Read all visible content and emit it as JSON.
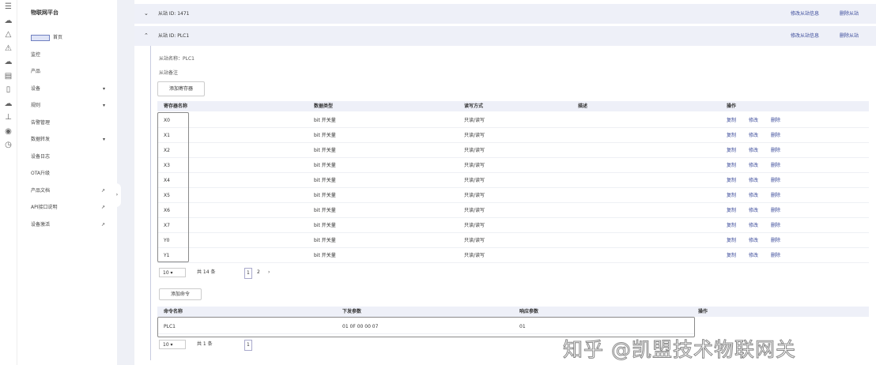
{
  "iconbar": {
    "icons": [
      "menu-icon",
      "cloud-icon",
      "alert-icon",
      "warning-icon",
      "cloud-icon",
      "calendar-icon",
      "phone-icon",
      "cloud-icon",
      "download-icon",
      "support-icon",
      "clock-icon"
    ]
  },
  "sidebar": {
    "title": "物联网平台",
    "items": [
      {
        "label": "首页",
        "arrow": ""
      },
      {
        "label": "监控",
        "arrow": ""
      },
      {
        "label": "产品",
        "arrow": ""
      },
      {
        "label": "设备",
        "arrow": "▾"
      },
      {
        "label": "规则",
        "arrow": "▾"
      },
      {
        "label": "告警管理",
        "arrow": ""
      },
      {
        "label": "数据转发",
        "arrow": "▾"
      },
      {
        "label": "设备日志",
        "arrow": ""
      },
      {
        "label": "OTA升级",
        "arrow": ""
      },
      {
        "label": "产品文档",
        "arrow": "↗"
      },
      {
        "label": "API接口说明",
        "arrow": "↗"
      },
      {
        "label": "设备激活",
        "arrow": "↗"
      }
    ]
  },
  "sections": [
    {
      "chevron": "⌄",
      "title": "从站 ID: 1471",
      "actions": [
        "修改从站信息",
        "删除从站"
      ]
    },
    {
      "chevron": "⌃",
      "title": "从站 ID: PLC1",
      "actions": [
        "修改从站信息",
        "删除从站"
      ]
    }
  ],
  "detail": {
    "slave_name": "从站名称：PLC1",
    "slave_note": "从站备注",
    "add_register_label": "添加寄存器",
    "registers": {
      "headers": [
        "寄存器名称",
        "数据类型",
        "读写方式",
        "描述",
        "操作"
      ],
      "rows": [
        [
          "X0",
          "bit 开关量",
          "只读/读写"
        ],
        [
          "X1",
          "bit 开关量",
          "只读/读写"
        ],
        [
          "X2",
          "bit 开关量",
          "只读/读写"
        ],
        [
          "X3",
          "bit 开关量",
          "只读/读写"
        ],
        [
          "X4",
          "bit 开关量",
          "只读/读写"
        ],
        [
          "X5",
          "bit 开关量",
          "只读/读写"
        ],
        [
          "X6",
          "bit 开关量",
          "只读/读写"
        ],
        [
          "X7",
          "bit 开关量",
          "只读/读写"
        ],
        [
          "Y0",
          "bit 开关量",
          "只读/读写"
        ],
        [
          "Y1",
          "bit 开关量",
          "只读/读写"
        ]
      ],
      "row_actions": [
        "复制",
        "修改",
        "删除"
      ],
      "pagination": {
        "page_size": "10",
        "total": "共 14 条",
        "pages": [
          "1",
          "2"
        ],
        "next": "›"
      }
    },
    "add_command_label": "添加命令",
    "commands": {
      "headers": [
        "命令名称",
        "下发参数",
        "响应参数",
        "操作"
      ],
      "rows": [
        [
          "PLC1",
          "01 0F 00 00 07",
          "01"
        ]
      ],
      "pagination": {
        "page_size": "10",
        "total": "共 1 条",
        "pages": [
          "1"
        ]
      }
    }
  },
  "watermark": "知乎 @凯盟技术物联网关"
}
